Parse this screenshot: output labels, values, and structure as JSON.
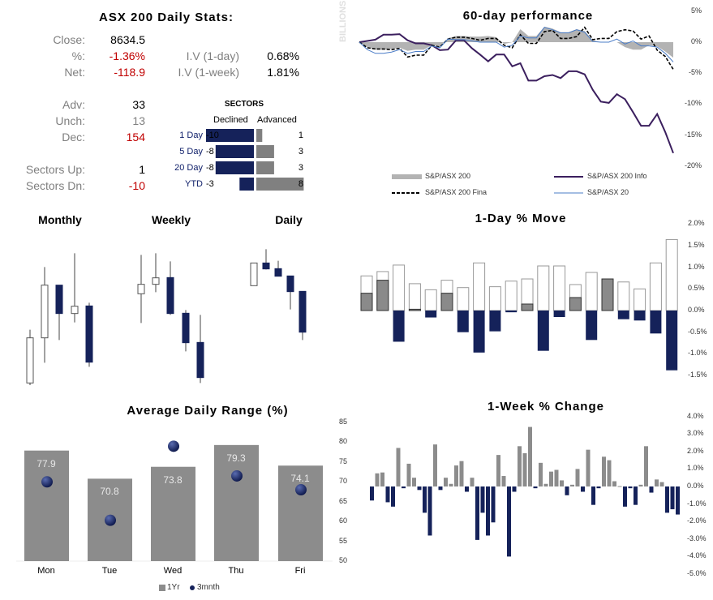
{
  "colors": {
    "navy": "#15225a",
    "gray": "#8c8c8c",
    "purple": "#3b1f5e",
    "blue": "#4a7cc7",
    "red": "#c00000"
  },
  "stats": {
    "title": "ASX 200 Daily Stats:",
    "close": {
      "label": "Close:",
      "value": "8634.5"
    },
    "pct": {
      "label": "%:",
      "value": "-1.36%"
    },
    "net": {
      "label": "Net:",
      "value": "-118.9"
    },
    "iv1d": {
      "label": "I.V (1-day)",
      "value": "0.68%"
    },
    "iv1w": {
      "label": "I.V (1-week)",
      "value": "1.81%"
    },
    "adv": {
      "label": "Adv:",
      "value": "33"
    },
    "unch": {
      "label": "Unch:",
      "value": "13"
    },
    "dec": {
      "label": "Dec:",
      "value": "154"
    },
    "sectors_up": {
      "label": "Sectors Up:",
      "value": "1"
    },
    "sectors_dn": {
      "label": "Sectors Dn:",
      "value": "-10"
    }
  },
  "sectors": {
    "title": "SECTORS",
    "declined_label": "Declined",
    "advanced_label": "Advanced",
    "rows": [
      {
        "period": "1 Day",
        "declined": -10,
        "advanced": 1,
        "declined_text": "-10",
        "advanced_text": "1"
      },
      {
        "period": "5 Day",
        "declined": -8,
        "advanced": 3,
        "declined_text": "-8",
        "advanced_text": "3"
      },
      {
        "period": "20 Day",
        "declined": -8,
        "advanced": 3,
        "declined_text": "-8",
        "advanced_text": "3"
      },
      {
        "period": "YTD",
        "declined": -3,
        "advanced": 8,
        "declined_text": "-3",
        "advanced_text": "8"
      }
    ]
  },
  "candles": {
    "monthly_title": "Monthly",
    "weekly_title": "Weekly",
    "daily_title": "Daily"
  },
  "chart_data": [
    {
      "type": "line",
      "title": "60-day performance",
      "side_label": "BILLIONS",
      "ylim": [
        -20,
        5
      ],
      "yticks": [
        "5%",
        "0%",
        "-5%",
        "-10%",
        "-15%",
        "-20%"
      ],
      "ytick_values": [
        5,
        0,
        -5,
        -10,
        -15,
        -20
      ],
      "legend": "bottom",
      "series": [
        {
          "name": "S&P/ASX 200",
          "style": "area",
          "values": [
            0,
            -0.8,
            -1.2,
            -1.2,
            -1.1,
            -0.9,
            -1.4,
            -1.2,
            -1.2,
            -0.5,
            -0.7,
            0.6,
            1.0,
            1.0,
            0.9,
            0.9,
            1.0,
            0.8,
            -0.3,
            0,
            2.1,
            1.0,
            1.0,
            2.5,
            2.2,
            1.6,
            1.6,
            2.1,
            1.8,
            0.3,
            0,
            0,
            0,
            -0.8,
            -1.2,
            -1.2,
            -0.5,
            -0.7,
            -1.5,
            -2.5
          ]
        },
        {
          "name": "S&P/ASX 200 Info",
          "style": "line",
          "values": [
            0,
            0.2,
            0.4,
            1.2,
            1.2,
            1.3,
            0.3,
            -0.2,
            -0.2,
            -0.5,
            -1.3,
            -1.2,
            0.3,
            0.3,
            -1.0,
            -2.0,
            -3.1,
            -2.0,
            -2.0,
            -3.9,
            -3.4,
            -6.2,
            -6.2,
            -5.5,
            -5.3,
            -5.8,
            -4.7,
            -4.7,
            -5.2,
            -7.7,
            -9.6,
            -9.8,
            -8.4,
            -9.2,
            -11.3,
            -13.5,
            -13.5,
            -11.6,
            -14.5,
            -17.9
          ]
        },
        {
          "name": "S&P/ASX 200 Fina",
          "style": "dashed",
          "values": [
            0,
            -0.9,
            -1.1,
            -1.1,
            -1.2,
            -1.0,
            -2.4,
            -2.1,
            -2.1,
            -0.5,
            -0.8,
            0.5,
            0.8,
            0.8,
            0.6,
            0.3,
            0.6,
            0.6,
            -0.5,
            -0.9,
            1.2,
            -0.2,
            -0.2,
            1.7,
            1.9,
            0.6,
            0.6,
            0.9,
            2.4,
            0.4,
            0.6,
            0.6,
            1.7,
            2.0,
            1.8,
            0.5,
            1.0,
            -1.3,
            -2.3,
            -4.4
          ]
        },
        {
          "name": "S&P/ASX 20",
          "style": "thin",
          "values": [
            0,
            -1.2,
            -1.8,
            -1.8,
            -1.6,
            -1.2,
            -1.8,
            -1.5,
            -1.5,
            -0.6,
            -0.9,
            0.5,
            0.4,
            0.4,
            0.2,
            0,
            0,
            0,
            -0.8,
            -0.5,
            1.0,
            0.7,
            0.7,
            2.4,
            2.0,
            1.5,
            1.5,
            2.0,
            1.6,
            0.1,
            0,
            0,
            0.5,
            -0.3,
            0.2,
            -0.6,
            -0.6,
            -0.8,
            -1.8,
            -3.2
          ]
        }
      ]
    },
    {
      "type": "candlestick",
      "title": "Monthly",
      "candles": [
        {
          "open": 48,
          "high": 245,
          "low": 40,
          "close": 215
        },
        {
          "open": 215,
          "high": 477,
          "low": 123,
          "close": 410
        },
        {
          "open": 410,
          "high": 410,
          "low": 207,
          "close": 305
        },
        {
          "open": 305,
          "high": 528,
          "low": 272,
          "close": 332
        },
        {
          "open": 333,
          "high": 345,
          "low": 108,
          "close": 125
        }
      ]
    },
    {
      "type": "candlestick",
      "title": "Weekly",
      "candles": [
        {
          "open": 378,
          "high": 522,
          "low": 270,
          "close": 413
        },
        {
          "open": 413,
          "high": 528,
          "low": 384,
          "close": 437
        },
        {
          "open": 438,
          "high": 498,
          "low": 300,
          "close": 305
        },
        {
          "open": 306,
          "high": 318,
          "low": 165,
          "close": 197
        },
        {
          "open": 198,
          "high": 300,
          "low": 48,
          "close": 68
        }
      ]
    },
    {
      "type": "candlestick",
      "title": "Daily",
      "candles": [
        {
          "open": 408,
          "high": 492,
          "low": 408,
          "close": 492
        },
        {
          "open": 492,
          "high": 543,
          "low": 468,
          "close": 470
        },
        {
          "open": 471,
          "high": 500,
          "low": 443,
          "close": 443
        },
        {
          "open": 444,
          "high": 445,
          "low": 320,
          "close": 386
        },
        {
          "open": 387,
          "high": 388,
          "low": 207,
          "close": 236
        }
      ]
    },
    {
      "type": "bar",
      "title": "1-Day % Move",
      "ylim": [
        -1.5,
        2.0
      ],
      "yticks": [
        "2.0%",
        "1.5%",
        "1.0%",
        "0.5%",
        "0.0%",
        "-0.5%",
        "-1.0%",
        "-1.5%"
      ],
      "ytick_values": [
        2,
        1.5,
        1,
        0.5,
        0,
        -0.5,
        -1,
        -1.5
      ],
      "series": [
        {
          "role": "high",
          "values": [
            0.8,
            0.9,
            1.05,
            0.62,
            0.48,
            0.7,
            0.53,
            1.1,
            0.55,
            0.68,
            0.73,
            1.03,
            1.03,
            0.6,
            0.88,
            0.73,
            0.66,
            0.5,
            1.1,
            1.64
          ]
        },
        {
          "role": "close_up",
          "values": [
            0.4,
            0.7,
            0,
            0.03,
            0,
            0.4,
            0,
            0,
            0,
            0,
            0.15,
            0,
            0,
            0.3,
            0,
            0.73,
            0,
            0,
            0,
            0
          ]
        },
        {
          "role": "low",
          "values": [
            0,
            0,
            -0.72,
            0,
            -0.16,
            0,
            -0.5,
            -0.97,
            -0.48,
            -0.04,
            0,
            -0.93,
            -0.15,
            0,
            -0.68,
            0,
            -0.2,
            -0.23,
            -0.53,
            -1.38
          ]
        }
      ]
    },
    {
      "type": "bar",
      "title": "Average Daily Range (%)",
      "categories": [
        "Mon",
        "Tue",
        "Wed",
        "Thu",
        "Fri"
      ],
      "ylim": [
        50,
        85
      ],
      "yticks": [
        "85",
        "80",
        "75",
        "70",
        "65",
        "60",
        "55",
        "50"
      ],
      "ytick_values": [
        85,
        80,
        75,
        70,
        65,
        60,
        55,
        50
      ],
      "legend": "bottom",
      "series": [
        {
          "name": "1Yr",
          "style": "bar",
          "values": [
            77.9,
            70.8,
            73.8,
            79.3,
            74.1
          ],
          "labels": [
            "77.9",
            "70.8",
            "73.8",
            "79.3",
            "74.1"
          ]
        },
        {
          "name": "3mnth",
          "style": "dot",
          "values": [
            70.0,
            60.3,
            79.0,
            71.5,
            68.0
          ]
        }
      ]
    },
    {
      "type": "bar",
      "title": "1-Week % Change",
      "ylim": [
        -5,
        4
      ],
      "yticks": [
        "4.0%",
        "3.0%",
        "2.0%",
        "1.0%",
        "0.0%",
        "-1.0%",
        "-2.0%",
        "-3.0%",
        "-4.0%",
        "-5.0%"
      ],
      "ytick_values": [
        4,
        3,
        2,
        1,
        0,
        -1,
        -2,
        -3,
        -4,
        -5
      ],
      "values": [
        -0.8,
        0.75,
        0.8,
        -0.9,
        -1.15,
        2.2,
        -0.1,
        1.3,
        0.5,
        -0.2,
        -1.5,
        -2.8,
        2.4,
        -0.2,
        0.5,
        0.15,
        1.2,
        1.45,
        -0.3,
        0.5,
        -3.05,
        -1.5,
        -2.8,
        -2.05,
        1.8,
        0.6,
        -4.0,
        -0.3,
        2.3,
        1.9,
        3.4,
        -0.1,
        1.35,
        0.15,
        0.85,
        0.95,
        0.35,
        -0.5,
        0.1,
        1.0,
        -0.3,
        2.1,
        -1.05,
        -0.1,
        1.7,
        1.5,
        0.3,
        0.02,
        -1.15,
        -0.1,
        -1.05,
        0.1,
        2.3,
        -0.35,
        0.4,
        0.25,
        -1.5,
        -1.3,
        -1.6
      ]
    }
  ]
}
